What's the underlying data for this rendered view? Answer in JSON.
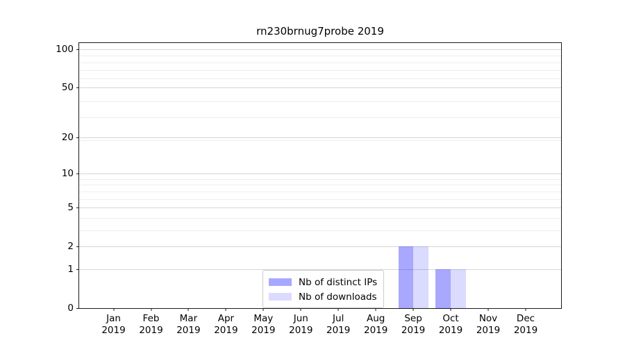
{
  "title": "rn230brnug7probe 2019",
  "chart_data": {
    "type": "bar",
    "title": "rn230brnug7probe 2019",
    "categories": [
      "Jan 2019",
      "Feb 2019",
      "Mar 2019",
      "Apr 2019",
      "May 2019",
      "Jun 2019",
      "Jul 2019",
      "Aug 2019",
      "Sep 2019",
      "Oct 2019",
      "Nov 2019",
      "Dec 2019"
    ],
    "series": [
      {
        "name": "Nb of distinct IPs",
        "color": "rgba(0,0,255,0.34)",
        "values": [
          0,
          0,
          0,
          0,
          0,
          0,
          0,
          0,
          2,
          1,
          0,
          0
        ]
      },
      {
        "name": "Nb of downloads",
        "color": "rgba(0,0,255,0.14)",
        "values": [
          0,
          0,
          0,
          0,
          0,
          0,
          0,
          0,
          2,
          1,
          0,
          0
        ]
      }
    ],
    "xlabel": "",
    "ylabel": "",
    "yscale": "log1p",
    "y_major_ticks": [
      0,
      1,
      2,
      5,
      10,
      20,
      50,
      100
    ],
    "y_minor_ticks": [
      3,
      4,
      6,
      7,
      8,
      9,
      19,
      29,
      39,
      59,
      69,
      79,
      89
    ],
    "ylim": [
      0,
      112
    ],
    "y_top_transform": 2.0524,
    "grid": "both",
    "legend_position": "lower-center-inside"
  }
}
